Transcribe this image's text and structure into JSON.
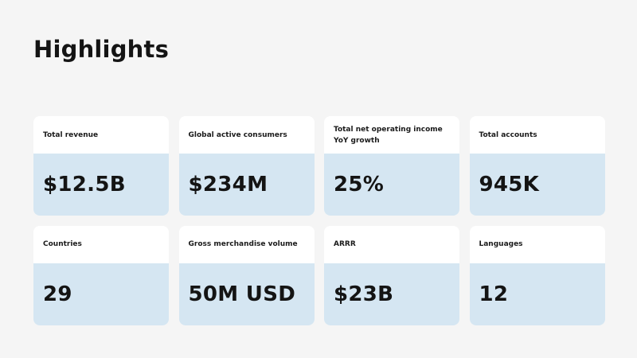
{
  "title": "Highlights",
  "colors": {
    "background": "#f5f5f5",
    "card_top": "#ffffff",
    "card_value_bg": "#d5e6f2",
    "text": "#141414"
  },
  "cards": [
    {
      "label": "Total revenue",
      "value": "$12.5B"
    },
    {
      "label": "Global active consumers",
      "value": "$234M"
    },
    {
      "label": "Total net operating income\nYoY growth",
      "value": "25%"
    },
    {
      "label": "Total accounts",
      "value": "945K"
    },
    {
      "label": "Countries",
      "value": "29"
    },
    {
      "label": "Gross merchandise volume",
      "value": "50M USD"
    },
    {
      "label": "ARRR",
      "value": "$23B"
    },
    {
      "label": "Languages",
      "value": "12"
    }
  ]
}
